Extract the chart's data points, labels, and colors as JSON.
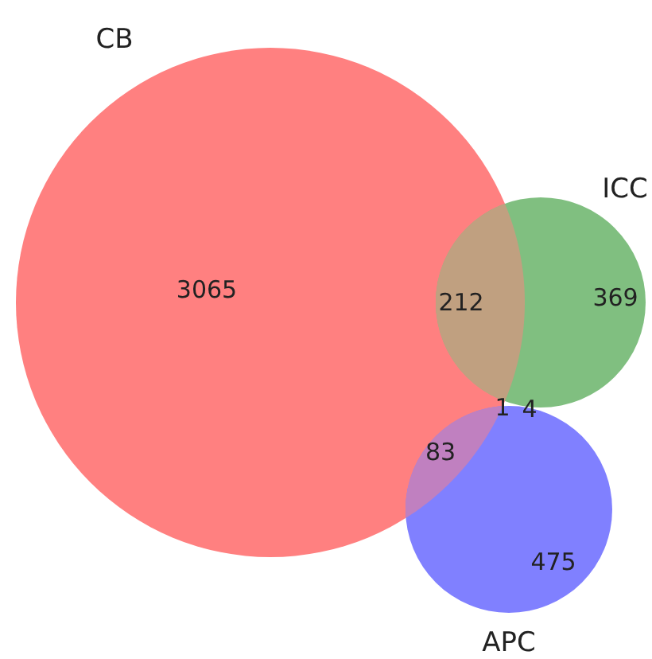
{
  "chart_data": {
    "type": "other",
    "categories": [
      "CB",
      "ICC",
      "APC"
    ],
    "colors": [
      "#ff8080",
      "#80bf80",
      "#8080ff"
    ],
    "values": [
      3065,
      369,
      475
    ],
    "data_labels": true,
    "annotations": [
      "212",
      "83",
      "1",
      "4"
    ]
  }
}
